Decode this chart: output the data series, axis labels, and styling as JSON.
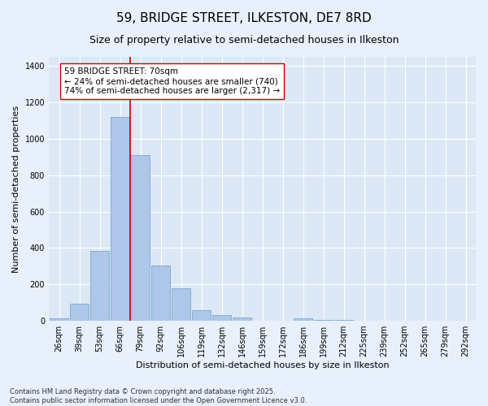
{
  "title": "59, BRIDGE STREET, ILKESTON, DE7 8RD",
  "subtitle": "Size of property relative to semi-detached houses in Ilkeston",
  "xlabel": "Distribution of semi-detached houses by size in Ilkeston",
  "ylabel": "Number of semi-detached properties",
  "categories": [
    "26sqm",
    "39sqm",
    "53sqm",
    "66sqm",
    "79sqm",
    "92sqm",
    "106sqm",
    "119sqm",
    "132sqm",
    "146sqm",
    "159sqm",
    "172sqm",
    "186sqm",
    "199sqm",
    "212sqm",
    "225sqm",
    "239sqm",
    "252sqm",
    "265sqm",
    "279sqm",
    "292sqm"
  ],
  "values": [
    15,
    95,
    385,
    1120,
    910,
    305,
    180,
    60,
    30,
    20,
    0,
    0,
    15,
    5,
    5,
    0,
    0,
    0,
    0,
    0,
    0
  ],
  "bar_color": "#aec6e8",
  "bar_edge_color": "#7aaace",
  "vline_color": "#cc0000",
  "vline_x_index": 3,
  "annotation_text": "59 BRIDGE STREET: 70sqm\n← 24% of semi-detached houses are smaller (740)\n74% of semi-detached houses are larger (2,317) →",
  "annotation_box_facecolor": "#ffffff",
  "annotation_box_edgecolor": "#cc0000",
  "ylim": [
    0,
    1450
  ],
  "yticks": [
    0,
    200,
    400,
    600,
    800,
    1000,
    1200,
    1400
  ],
  "footer": "Contains HM Land Registry data © Crown copyright and database right 2025.\nContains public sector information licensed under the Open Government Licence v3.0.",
  "bg_color": "#e8f0fb",
  "plot_bg_color": "#dce8f5",
  "title_fontsize": 11,
  "subtitle_fontsize": 9,
  "axis_label_fontsize": 8,
  "tick_fontsize": 7,
  "footer_fontsize": 6,
  "annotation_fontsize": 7.5
}
